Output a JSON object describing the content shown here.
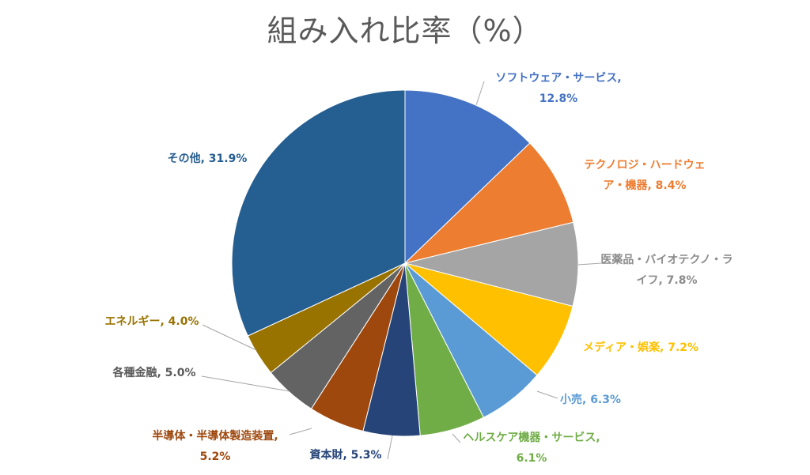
{
  "chart_data": {
    "type": "pie",
    "title": "組み入れ比率（%）",
    "slices": [
      {
        "name": "ソフトウェア・サービス",
        "value": 12.8,
        "color": "#4472c4",
        "label_lines": [
          "ソフトウェア・サービス,",
          "12.8%"
        ]
      },
      {
        "name": "テクノロジ・ハードウェア・機器",
        "value": 8.4,
        "color": "#ed7d31",
        "label_lines": [
          "テクノロジ・ハードウェ",
          "ア・機器, 8.4%"
        ]
      },
      {
        "name": "医薬品・バイオテクノ・ライフ",
        "value": 7.8,
        "color": "#a5a5a5",
        "label_lines": [
          "医薬品・バイオテクノ・ラ",
          "イフ, 7.8%"
        ]
      },
      {
        "name": "メディア・娯楽",
        "value": 7.2,
        "color": "#ffc000",
        "label_lines": [
          "メディア・娯楽, 7.2%"
        ]
      },
      {
        "name": "小売",
        "value": 6.3,
        "color": "#5b9bd5",
        "label_lines": [
          "小売, 6.3%"
        ]
      },
      {
        "name": "ヘルスケア機器・サービス",
        "value": 6.1,
        "color": "#70ad47",
        "label_lines": [
          "ヘルスケア機器・サービス,",
          "6.1%"
        ]
      },
      {
        "name": "資本財",
        "value": 5.3,
        "color": "#264478",
        "label_lines": [
          "資本財, 5.3%"
        ]
      },
      {
        "name": "半導体・半導体製造装置",
        "value": 5.2,
        "color": "#9e480e",
        "label_lines": [
          "半導体・半導体製造装置,",
          "5.2%"
        ]
      },
      {
        "name": "各種金融",
        "value": 5.0,
        "color": "#636363",
        "label_lines": [
          "各種金融, 5.0%"
        ]
      },
      {
        "name": "エネルギー",
        "value": 4.0,
        "color": "#997300",
        "label_lines": [
          "エネルギー, 4.0%"
        ]
      },
      {
        "name": "その他",
        "value": 31.9,
        "color": "#255e91",
        "label_lines": [
          "その他, 31.9%"
        ]
      }
    ],
    "legend": "none"
  }
}
